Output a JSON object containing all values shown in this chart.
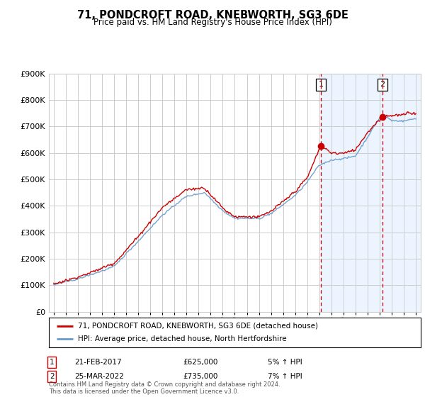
{
  "title": "71, PONDCROFT ROAD, KNEBWORTH, SG3 6DE",
  "subtitle": "Price paid vs. HM Land Registry's House Price Index (HPI)",
  "ylim": [
    0,
    900000
  ],
  "yticks": [
    0,
    100000,
    200000,
    300000,
    400000,
    500000,
    600000,
    700000,
    800000,
    900000
  ],
  "legend_label_red": "71, PONDCROFT ROAD, KNEBWORTH, SG3 6DE (detached house)",
  "legend_label_blue": "HPI: Average price, detached house, North Hertfordshire",
  "annotation1_label": "1",
  "annotation1_date": "21-FEB-2017",
  "annotation1_price": "£625,000",
  "annotation1_hpi": "5% ↑ HPI",
  "annotation2_label": "2",
  "annotation2_date": "25-MAR-2022",
  "annotation2_price": "£735,000",
  "annotation2_hpi": "7% ↑ HPI",
  "footer": "Contains HM Land Registry data © Crown copyright and database right 2024.\nThis data is licensed under the Open Government Licence v3.0.",
  "red_color": "#cc0000",
  "blue_color": "#6699cc",
  "grid_color": "#cccccc",
  "bg_color": "#ffffff",
  "shade_color": "#ddeeff",
  "sale1_year": 2017.12,
  "sale1_value": 625000,
  "sale2_year": 2022.23,
  "sale2_value": 735000,
  "shade_start": 2017.12,
  "xlim_left": 1994.6,
  "xlim_right": 2025.4
}
